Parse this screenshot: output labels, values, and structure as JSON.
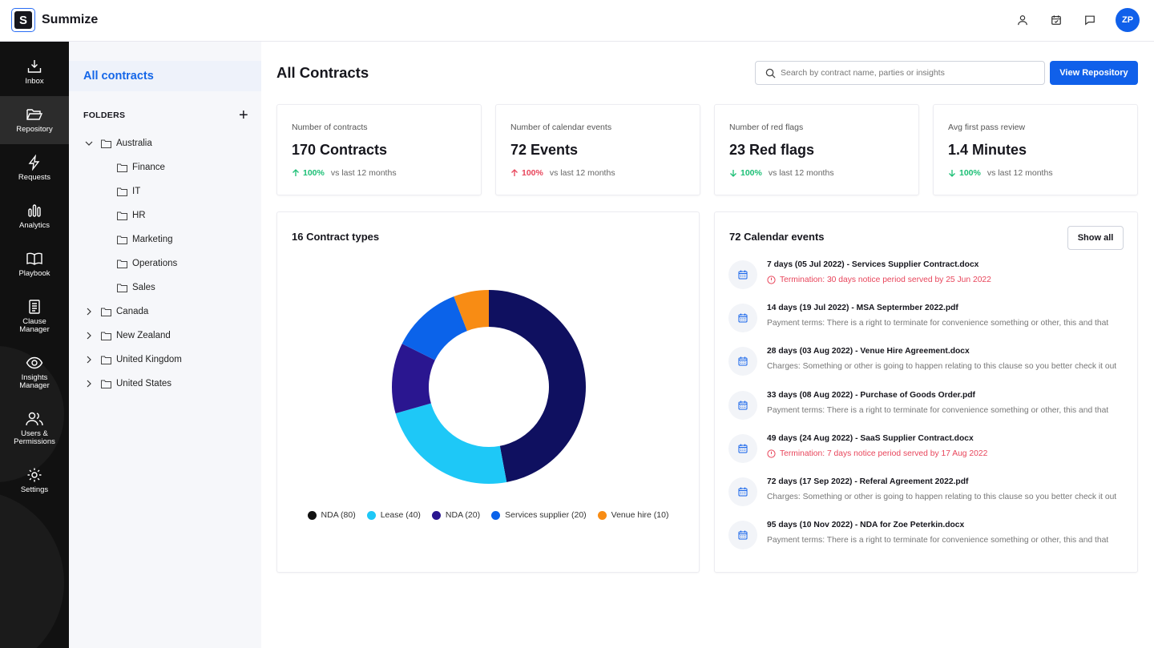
{
  "app": {
    "name": "Summize",
    "logo_letter": "S",
    "avatar_initials": "ZP"
  },
  "rail": [
    {
      "label": "Inbox",
      "icon": "inbox-icon"
    },
    {
      "label": "Repository",
      "icon": "folder-open-icon",
      "active": true
    },
    {
      "label": "Requests",
      "icon": "lightning-icon"
    },
    {
      "label": "Analytics",
      "icon": "bar-chart-icon"
    },
    {
      "label": "Playbook",
      "icon": "book-icon"
    },
    {
      "label": "Clause Manager",
      "icon": "document-icon"
    },
    {
      "label": "Insights Manager",
      "icon": "eye-icon"
    },
    {
      "label": "Users & Permissions",
      "icon": "users-icon"
    },
    {
      "label": "Settings",
      "icon": "gear-icon"
    }
  ],
  "folders": {
    "all_label": "All contracts",
    "heading": "FOLDERS",
    "australia": "Australia",
    "australia_children": [
      "Finance",
      "IT",
      "HR",
      "Marketing",
      "Operations",
      "Sales"
    ],
    "others": [
      "Canada",
      "New Zealand",
      "United Kingdom",
      "United States"
    ]
  },
  "main": {
    "title": "All Contracts",
    "search_placeholder": "Search by contract name, parties or insights",
    "view_button": "View Repository"
  },
  "stats": [
    {
      "label": "Number of contracts",
      "value": "170 Contracts",
      "direction": "up",
      "pct": "100%",
      "suffix": "vs last 12 months",
      "color": "#1bbf75"
    },
    {
      "label": "Number of calendar events",
      "value": "72 Events",
      "direction": "up",
      "pct": "100%",
      "suffix": "vs last 12 months",
      "color": "#e8455b"
    },
    {
      "label": "Number of red flags",
      "value": "23 Red flags",
      "direction": "down",
      "pct": "100%",
      "suffix": "vs last 12 months",
      "color": "#1bbf75"
    },
    {
      "label": "Avg first pass review",
      "value": "1.4 Minutes",
      "direction": "down",
      "pct": "100%",
      "suffix": "vs last 12 months",
      "color": "#1bbf75"
    }
  ],
  "contract_types": {
    "title": "16 Contract types",
    "legend": [
      "NDA (80)",
      "Lease (40)",
      "NDA (20)",
      "Services supplier (20)",
      "Venue hire (10)"
    ]
  },
  "chart_data": {
    "type": "pie",
    "title": "16 Contract types",
    "categories": [
      "NDA",
      "Lease",
      "NDA",
      "Services supplier",
      "Venue hire"
    ],
    "values": [
      80,
      40,
      20,
      20,
      10
    ],
    "colors": [
      "#0f1060",
      "#1ec8f7",
      "#2a1690",
      "#0b63ea",
      "#f88c14"
    ],
    "legend_colors": [
      "#111111",
      "#1ec8f7",
      "#2a1690",
      "#0b63ea",
      "#f88c14"
    ],
    "donut": true,
    "legend_position": "bottom"
  },
  "calendar": {
    "title": "72 Calendar events",
    "show_all": "Show all",
    "events": [
      {
        "title": "7 days (05 Jul 2022) - Services Supplier Contract.docx",
        "sub": "Termination: 30 days notice period served by 25 Jun 2022",
        "warn": true
      },
      {
        "title": "14 days (19 Jul 2022) - MSA Septermber 2022.pdf",
        "sub": "Payment terms: There is a right to terminate for convenience something or other, this and that",
        "warn": false
      },
      {
        "title": "28 days (03 Aug 2022) - Venue Hire Agreement.docx",
        "sub": "Charges: Something or other is going to happen relating to this clause so you better check it out",
        "warn": false
      },
      {
        "title": "33 days (08 Aug 2022) - Purchase of Goods Order.pdf",
        "sub": "Payment terms: There is a right to terminate for convenience something or other, this and that",
        "warn": false
      },
      {
        "title": "49 days (24 Aug 2022) - SaaS Supplier Contract.docx",
        "sub": "Termination: 7 days notice period served by 17 Aug 2022",
        "warn": true
      },
      {
        "title": "72 days (17 Sep 2022) - Referal Agreement 2022.pdf",
        "sub": "Charges: Something or other is going to happen relating to this clause so you better check it out",
        "warn": false
      },
      {
        "title": "95 days (10 Nov 2022) - NDA for Zoe Peterkin.docx",
        "sub": "Payment terms: There is a right to terminate for convenience something or other, this and that",
        "warn": false
      }
    ]
  }
}
